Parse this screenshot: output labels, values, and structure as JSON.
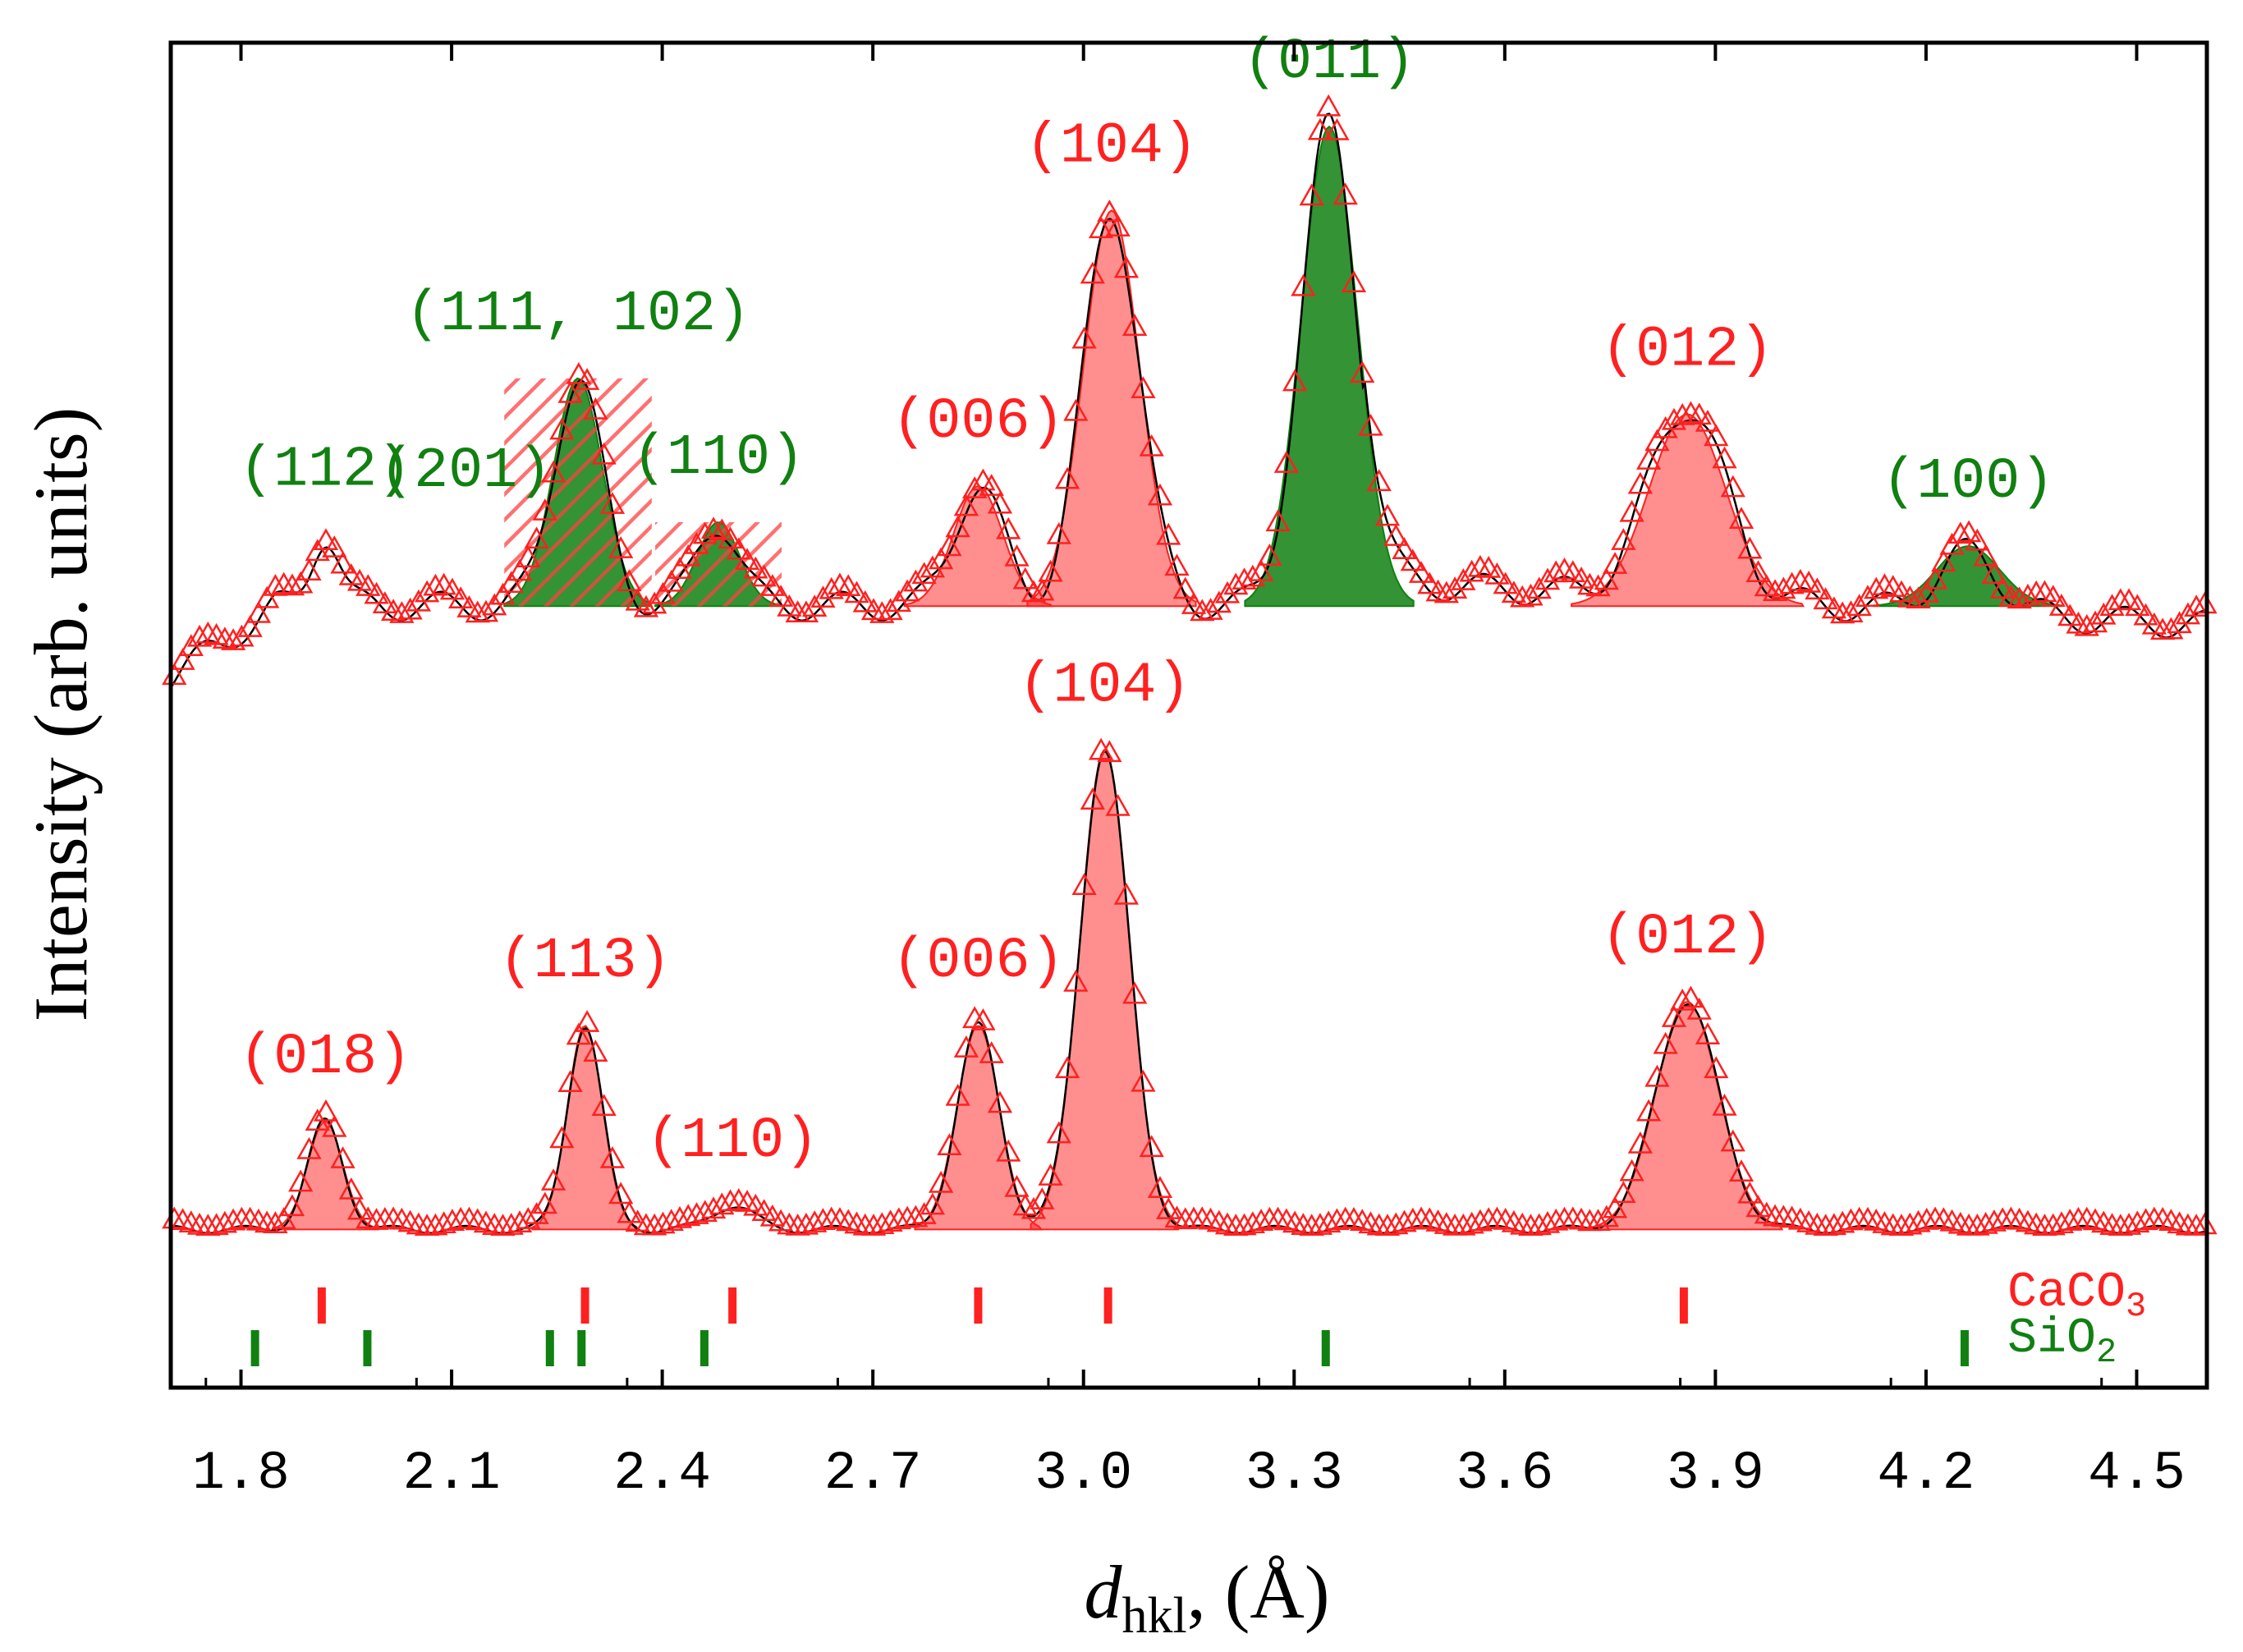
{
  "chart_data": {
    "type": "line",
    "title": "",
    "xlabel_main": "d",
    "xlabel_sub": "hkl",
    "xlabel_rest": ", (Å)",
    "ylabel": "Intensity (arb. units)",
    "xlim": [
      1.7,
      4.6
    ],
    "ylim": [
      0,
      100
    ],
    "x_ticks": [
      "1.8",
      "2.1",
      "2.4",
      "2.7",
      "3.0",
      "3.3",
      "3.6",
      "3.9",
      "4.2",
      "4.5"
    ],
    "colors": {
      "caco3": "#ff2020",
      "sio2": "#108010",
      "fit": "#000000",
      "frame": "#000000"
    },
    "series": [
      {
        "name": "upper pattern",
        "baseline": 53,
        "peaks": [
          {
            "x": 1.92,
            "h": 6,
            "w": 0.02,
            "phase": "SiO2",
            "label": "(112)",
            "filled": false
          },
          {
            "x": 2.28,
            "h": 19,
            "w": 0.035,
            "phase": "SiO2",
            "label": "(111, 102)",
            "filled": true
          },
          {
            "x": 2.48,
            "h": 7,
            "w": 0.03,
            "phase": "SiO2",
            "label": "(110)",
            "filled": true
          },
          {
            "x": 2.85,
            "h": 10,
            "w": 0.035,
            "phase": "CaCO3",
            "label": "(006)",
            "filled": true
          },
          {
            "x": 3.04,
            "h": 33,
            "w": 0.04,
            "phase": "CaCO3",
            "label": "(104)",
            "filled": true
          },
          {
            "x": 3.35,
            "h": 40,
            "w": 0.04,
            "phase": "SiO2",
            "label": "(011)",
            "filled": true
          },
          {
            "x": 3.86,
            "h": 16,
            "w": 0.055,
            "phase": "CaCO3",
            "label": "(012)",
            "filled": true
          },
          {
            "x": 4.26,
            "h": 5,
            "w": 0.045,
            "phase": "SiO2",
            "label": "(100)",
            "filled": true
          }
        ],
        "extra_labels": [
          {
            "label": "(201)",
            "phase": "SiO2"
          }
        ]
      },
      {
        "name": "lower pattern",
        "baseline": 1,
        "peaks": [
          {
            "x": 1.92,
            "h": 9,
            "w": 0.025,
            "phase": "CaCO3",
            "label": "(018)",
            "filled": true
          },
          {
            "x": 2.29,
            "h": 17,
            "w": 0.025,
            "phase": "CaCO3",
            "label": "(113)",
            "filled": true
          },
          {
            "x": 2.5,
            "h": 2,
            "w": 0.03,
            "phase": "CaCO3",
            "label": "(110)",
            "filled": false
          },
          {
            "x": 2.85,
            "h": 17,
            "w": 0.03,
            "phase": "CaCO3",
            "label": "(006)",
            "filled": true
          },
          {
            "x": 3.03,
            "h": 40,
            "w": 0.035,
            "phase": "CaCO3",
            "label": "(104)",
            "filled": true
          },
          {
            "x": 3.86,
            "h": 19,
            "w": 0.045,
            "phase": "CaCO3",
            "label": "(012)",
            "filled": true
          }
        ]
      }
    ],
    "reflection_ticks": {
      "CaCO3": [
        1.915,
        2.29,
        2.5,
        2.85,
        3.035,
        3.855
      ],
      "SiO2": [
        1.82,
        1.98,
        2.24,
        2.285,
        2.46,
        3.345,
        4.255
      ]
    },
    "legend": [
      {
        "name": "CaCO",
        "sub": "3",
        "phase": "CaCO3"
      },
      {
        "name": "SiO",
        "sub": "2",
        "phase": "SiO2"
      }
    ]
  }
}
